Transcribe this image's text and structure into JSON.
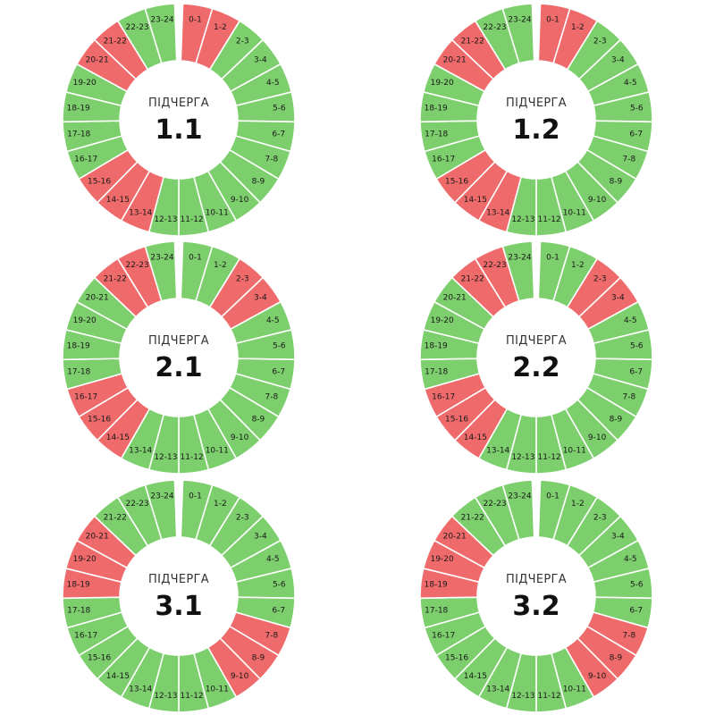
{
  "colors": {
    "on": "#7ccf6c",
    "off": "#ef6a6a",
    "background": "#ffffff"
  },
  "chart_data": [
    {
      "type": "pie",
      "caption": "ПІДЧЕРГА",
      "queue": "1.1",
      "categories": [
        "0-1",
        "1-2",
        "2-3",
        "3-4",
        "4-5",
        "5-6",
        "6-7",
        "7-8",
        "8-9",
        "9-10",
        "10-11",
        "11-12",
        "12-13",
        "13-14",
        "14-15",
        "15-16",
        "16-17",
        "17-18",
        "18-19",
        "19-20",
        "20-21",
        "21-22",
        "22-23",
        "23-24"
      ],
      "status": [
        "off",
        "off",
        "on",
        "on",
        "on",
        "on",
        "on",
        "on",
        "on",
        "on",
        "on",
        "on",
        "on",
        "off",
        "off",
        "off",
        "on",
        "on",
        "on",
        "on",
        "off",
        "off",
        "on",
        "on"
      ]
    },
    {
      "type": "pie",
      "caption": "ПІДЧЕРГА",
      "queue": "1.2",
      "categories": [
        "0-1",
        "1-2",
        "2-3",
        "3-4",
        "4-5",
        "5-6",
        "6-7",
        "7-8",
        "8-9",
        "9-10",
        "10-11",
        "11-12",
        "12-13",
        "13-14",
        "14-15",
        "15-16",
        "16-17",
        "17-18",
        "18-19",
        "19-20",
        "20-21",
        "21-22",
        "22-23",
        "23-24"
      ],
      "status": [
        "off",
        "off",
        "on",
        "on",
        "on",
        "on",
        "on",
        "on",
        "on",
        "on",
        "on",
        "on",
        "on",
        "off",
        "off",
        "off",
        "on",
        "on",
        "on",
        "on",
        "off",
        "off",
        "on",
        "on"
      ]
    },
    {
      "type": "pie",
      "caption": "ПІДЧЕРГА",
      "queue": "2.1",
      "categories": [
        "0-1",
        "1-2",
        "2-3",
        "3-4",
        "4-5",
        "5-6",
        "6-7",
        "7-8",
        "8-9",
        "9-10",
        "10-11",
        "11-12",
        "12-13",
        "13-14",
        "14-15",
        "15-16",
        "16-17",
        "17-18",
        "18-19",
        "19-20",
        "20-21",
        "21-22",
        "22-23",
        "23-24"
      ],
      "status": [
        "on",
        "on",
        "off",
        "off",
        "on",
        "on",
        "on",
        "on",
        "on",
        "on",
        "on",
        "on",
        "on",
        "on",
        "off",
        "off",
        "off",
        "on",
        "on",
        "on",
        "on",
        "off",
        "off",
        "on"
      ]
    },
    {
      "type": "pie",
      "caption": "ПІДЧЕРГА",
      "queue": "2.2",
      "categories": [
        "0-1",
        "1-2",
        "2-3",
        "3-4",
        "4-5",
        "5-6",
        "6-7",
        "7-8",
        "8-9",
        "9-10",
        "10-11",
        "11-12",
        "12-13",
        "13-14",
        "14-15",
        "15-16",
        "16-17",
        "17-18",
        "18-19",
        "19-20",
        "20-21",
        "21-22",
        "22-23",
        "23-24"
      ],
      "status": [
        "on",
        "on",
        "off",
        "off",
        "on",
        "on",
        "on",
        "on",
        "on",
        "on",
        "on",
        "on",
        "on",
        "on",
        "off",
        "off",
        "off",
        "on",
        "on",
        "on",
        "on",
        "off",
        "off",
        "on"
      ]
    },
    {
      "type": "pie",
      "caption": "ПІДЧЕРГА",
      "queue": "3.1",
      "categories": [
        "0-1",
        "1-2",
        "2-3",
        "3-4",
        "4-5",
        "5-6",
        "6-7",
        "7-8",
        "8-9",
        "9-10",
        "10-11",
        "11-12",
        "12-13",
        "13-14",
        "14-15",
        "15-16",
        "16-17",
        "17-18",
        "18-19",
        "19-20",
        "20-21",
        "21-22",
        "22-23",
        "23-24"
      ],
      "status": [
        "on",
        "on",
        "on",
        "on",
        "on",
        "on",
        "on",
        "off",
        "off",
        "off",
        "on",
        "on",
        "on",
        "on",
        "on",
        "on",
        "on",
        "on",
        "off",
        "off",
        "off",
        "on",
        "on",
        "on"
      ]
    },
    {
      "type": "pie",
      "caption": "ПІДЧЕРГА",
      "queue": "3.2",
      "categories": [
        "0-1",
        "1-2",
        "2-3",
        "3-4",
        "4-5",
        "5-6",
        "6-7",
        "7-8",
        "8-9",
        "9-10",
        "10-11",
        "11-12",
        "12-13",
        "13-14",
        "14-15",
        "15-16",
        "16-17",
        "17-18",
        "18-19",
        "19-20",
        "20-21",
        "21-22",
        "22-23",
        "23-24"
      ],
      "status": [
        "on",
        "on",
        "on",
        "on",
        "on",
        "on",
        "on",
        "off",
        "off",
        "off",
        "on",
        "on",
        "on",
        "on",
        "on",
        "on",
        "on",
        "on",
        "off",
        "off",
        "off",
        "on",
        "on",
        "on"
      ]
    }
  ]
}
